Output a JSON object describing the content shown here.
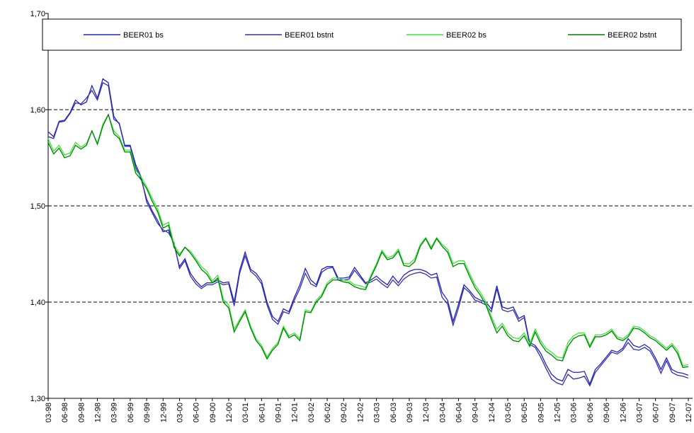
{
  "chart_data": {
    "type": "line",
    "categories": [
      "03-98",
      null,
      null,
      "06-98",
      null,
      null,
      "09-98",
      null,
      null,
      "12-98",
      null,
      null,
      "03-99",
      null,
      null,
      "06-99",
      null,
      null,
      "09-99",
      null,
      null,
      "12-99",
      null,
      null,
      "03-00",
      null,
      null,
      "06-00",
      null,
      null,
      "09-00",
      null,
      null,
      "12-00",
      null,
      null,
      "03-01",
      null,
      null,
      "06-01",
      null,
      null,
      "09-01",
      null,
      null,
      "12-01",
      null,
      null,
      "03-02",
      null,
      null,
      "06-02",
      null,
      null,
      "09-02",
      null,
      null,
      "12-02",
      null,
      null,
      "03-03",
      null,
      null,
      "06-03",
      null,
      null,
      "09-03",
      null,
      null,
      "12-03",
      null,
      null,
      "03-04",
      null,
      null,
      "06-04",
      null,
      null,
      "09-04",
      null,
      null,
      "12-04",
      null,
      null,
      "03-05",
      null,
      null,
      "06-05",
      null,
      null,
      "09-05",
      null,
      null,
      "12-05",
      null,
      null,
      "03-06",
      null,
      null,
      "06-06",
      null,
      null,
      "09-06",
      null,
      null,
      "12-06",
      null,
      null,
      "03-07",
      null,
      null,
      "06-07",
      null,
      null,
      "09-07",
      null,
      null,
      "12-07"
    ],
    "series": [
      {
        "name": "BEER01 bs",
        "color": "#2222cc",
        "values": [
          1.577,
          1.572,
          1.588,
          1.589,
          1.597,
          1.61,
          1.605,
          1.608,
          1.625,
          1.612,
          1.632,
          1.628,
          1.593,
          1.585,
          1.562,
          1.562,
          1.54,
          1.528,
          1.507,
          1.495,
          1.485,
          1.473,
          1.475,
          1.46,
          1.437,
          1.445,
          1.43,
          1.422,
          1.416,
          1.42,
          1.42,
          1.423,
          1.42,
          1.421,
          1.4,
          1.433,
          1.452,
          1.434,
          1.43,
          1.422,
          1.4,
          1.385,
          1.38,
          1.393,
          1.39,
          1.405,
          1.418,
          1.435,
          1.423,
          1.418,
          1.434,
          1.437,
          1.437,
          1.425,
          1.425,
          1.426,
          1.436,
          1.428,
          1.42,
          1.423,
          1.427,
          1.422,
          1.418,
          1.427,
          1.42,
          1.428,
          1.432,
          1.434,
          1.434,
          1.432,
          1.428,
          1.43,
          1.41,
          1.402,
          1.38,
          1.398,
          1.418,
          1.412,
          1.405,
          1.402,
          1.4,
          1.393,
          1.417,
          1.395,
          1.393,
          1.395,
          1.383,
          1.386,
          1.358,
          1.355,
          1.347,
          1.335,
          1.325,
          1.32,
          1.318,
          1.33,
          1.327,
          1.327,
          1.328,
          1.315,
          1.33,
          1.336,
          1.343,
          1.35,
          1.348,
          1.352,
          1.362,
          1.355,
          1.353,
          1.356,
          1.352,
          1.342,
          1.33,
          1.342,
          1.33,
          1.327,
          1.326,
          1.324
        ]
      },
      {
        "name": "BEER01 bstnt",
        "color": "#3333a0",
        "values": [
          1.572,
          1.57,
          1.587,
          1.588,
          1.596,
          1.607,
          1.606,
          1.612,
          1.62,
          1.61,
          1.628,
          1.625,
          1.59,
          1.586,
          1.563,
          1.563,
          1.543,
          1.53,
          1.504,
          1.493,
          1.482,
          1.475,
          1.472,
          1.462,
          1.435,
          1.443,
          1.427,
          1.419,
          1.414,
          1.418,
          1.418,
          1.421,
          1.418,
          1.419,
          1.396,
          1.43,
          1.448,
          1.432,
          1.427,
          1.419,
          1.397,
          1.382,
          1.377,
          1.39,
          1.388,
          1.402,
          1.414,
          1.43,
          1.419,
          1.416,
          1.431,
          1.435,
          1.436,
          1.423,
          1.423,
          1.424,
          1.433,
          1.426,
          1.419,
          1.421,
          1.424,
          1.419,
          1.415,
          1.423,
          1.417,
          1.424,
          1.428,
          1.43,
          1.431,
          1.429,
          1.425,
          1.426,
          1.405,
          1.398,
          1.376,
          1.394,
          1.415,
          1.41,
          1.402,
          1.4,
          1.397,
          1.39,
          1.414,
          1.392,
          1.39,
          1.392,
          1.38,
          1.384,
          1.356,
          1.353,
          1.343,
          1.331,
          1.32,
          1.316,
          1.314,
          1.325,
          1.32,
          1.321,
          1.323,
          1.313,
          1.327,
          1.334,
          1.341,
          1.348,
          1.346,
          1.35,
          1.358,
          1.351,
          1.35,
          1.353,
          1.349,
          1.339,
          1.326,
          1.339,
          1.327,
          1.324,
          1.323,
          1.321
        ]
      },
      {
        "name": "BEER02 bs",
        "color": "#33ee33",
        "values": [
          1.57,
          1.557,
          1.563,
          1.553,
          1.555,
          1.566,
          1.561,
          1.565,
          1.578,
          1.565,
          1.585,
          1.595,
          1.578,
          1.572,
          1.558,
          1.558,
          1.537,
          1.53,
          1.52,
          1.508,
          1.497,
          1.48,
          1.483,
          1.46,
          1.45,
          1.457,
          1.453,
          1.445,
          1.437,
          1.432,
          1.422,
          1.428,
          1.403,
          1.397,
          1.372,
          1.382,
          1.392,
          1.375,
          1.362,
          1.355,
          1.343,
          1.352,
          1.358,
          1.375,
          1.365,
          1.368,
          1.362,
          1.392,
          1.39,
          1.402,
          1.408,
          1.42,
          1.425,
          1.425,
          1.423,
          1.422,
          1.418,
          1.417,
          1.415,
          1.428,
          1.44,
          1.454,
          1.446,
          1.448,
          1.455,
          1.44,
          1.44,
          1.445,
          1.46,
          1.467,
          1.457,
          1.467,
          1.46,
          1.455,
          1.44,
          1.443,
          1.443,
          1.43,
          1.418,
          1.41,
          1.4,
          1.385,
          1.372,
          1.378,
          1.368,
          1.363,
          1.362,
          1.368,
          1.357,
          1.372,
          1.36,
          1.352,
          1.348,
          1.343,
          1.342,
          1.358,
          1.365,
          1.368,
          1.368,
          1.355,
          1.366,
          1.366,
          1.368,
          1.372,
          1.364,
          1.362,
          1.366,
          1.375,
          1.374,
          1.37,
          1.365,
          1.362,
          1.357,
          1.352,
          1.357,
          1.35,
          1.334,
          1.335
        ]
      },
      {
        "name": "BEER02 bstnt",
        "color": "#008000",
        "values": [
          1.566,
          1.554,
          1.56,
          1.55,
          1.552,
          1.563,
          1.559,
          1.563,
          1.578,
          1.564,
          1.583,
          1.595,
          1.575,
          1.57,
          1.556,
          1.556,
          1.534,
          1.527,
          1.518,
          1.505,
          1.494,
          1.477,
          1.48,
          1.457,
          1.448,
          1.457,
          1.451,
          1.443,
          1.434,
          1.429,
          1.42,
          1.425,
          1.4,
          1.394,
          1.369,
          1.38,
          1.39,
          1.373,
          1.36,
          1.353,
          1.341,
          1.35,
          1.356,
          1.373,
          1.363,
          1.366,
          1.36,
          1.39,
          1.389,
          1.4,
          1.406,
          1.418,
          1.423,
          1.423,
          1.421,
          1.42,
          1.416,
          1.414,
          1.413,
          1.426,
          1.438,
          1.452,
          1.444,
          1.446,
          1.453,
          1.438,
          1.437,
          1.442,
          1.458,
          1.466,
          1.455,
          1.466,
          1.458,
          1.452,
          1.437,
          1.44,
          1.44,
          1.427,
          1.415,
          1.407,
          1.397,
          1.382,
          1.368,
          1.375,
          1.365,
          1.36,
          1.359,
          1.365,
          1.354,
          1.369,
          1.357,
          1.349,
          1.345,
          1.34,
          1.339,
          1.354,
          1.362,
          1.365,
          1.366,
          1.353,
          1.364,
          1.364,
          1.366,
          1.37,
          1.362,
          1.36,
          1.364,
          1.373,
          1.372,
          1.368,
          1.363,
          1.36,
          1.355,
          1.35,
          1.355,
          1.347,
          1.332,
          1.333
        ]
      }
    ],
    "ylim": [
      1.3,
      1.7
    ],
    "yticks": [
      {
        "value": 1.3,
        "label": "1,30"
      },
      {
        "value": 1.4,
        "label": "1,40"
      },
      {
        "value": 1.5,
        "label": "1,50"
      },
      {
        "value": 1.6,
        "label": "1,60"
      },
      {
        "value": 1.7,
        "label": "1,70"
      }
    ],
    "grid": true,
    "legend": "top"
  }
}
